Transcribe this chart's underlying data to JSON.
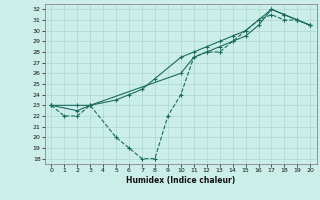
{
  "xlabel": "Humidex (Indice chaleur)",
  "bg_color": "#cceee8",
  "grid_color": "#aad8d0",
  "line_color": "#1a6b5e",
  "xlim": [
    -0.5,
    20.5
  ],
  "ylim": [
    17.5,
    32.5
  ],
  "xticks": [
    0,
    1,
    2,
    3,
    4,
    5,
    6,
    7,
    8,
    9,
    10,
    11,
    12,
    13,
    14,
    15,
    16,
    17,
    18,
    19,
    20
  ],
  "yticks": [
    18,
    19,
    20,
    21,
    22,
    23,
    24,
    25,
    26,
    27,
    28,
    29,
    30,
    31,
    32
  ],
  "series1_dashed": {
    "x": [
      0,
      1,
      2,
      3,
      5,
      6,
      7,
      8,
      9,
      10,
      11,
      12,
      13,
      14,
      15,
      16,
      17,
      18,
      19,
      20
    ],
    "y": [
      23,
      22,
      22,
      23,
      20,
      19,
      18,
      18,
      22,
      24,
      27.5,
      28,
      28,
      29,
      30,
      31,
      31.5,
      31,
      31,
      30.5
    ]
  },
  "series2_solid": {
    "x": [
      0,
      2,
      3,
      10,
      11,
      12,
      13,
      14,
      15,
      16,
      17,
      18,
      19,
      20
    ],
    "y": [
      23,
      23,
      23,
      26,
      27.5,
      28,
      28.5,
      29,
      29.5,
      30.5,
      32,
      31.5,
      31,
      30.5
    ]
  },
  "series3_solid": {
    "x": [
      0,
      2,
      3,
      5,
      6,
      7,
      8,
      10,
      11,
      12,
      13,
      14,
      15,
      16,
      17,
      18,
      19,
      20
    ],
    "y": [
      23,
      22.5,
      23,
      23.5,
      24,
      24.5,
      25.5,
      27.5,
      28,
      28.5,
      29,
      29.5,
      30,
      31,
      32,
      31.5,
      31,
      30.5
    ]
  }
}
